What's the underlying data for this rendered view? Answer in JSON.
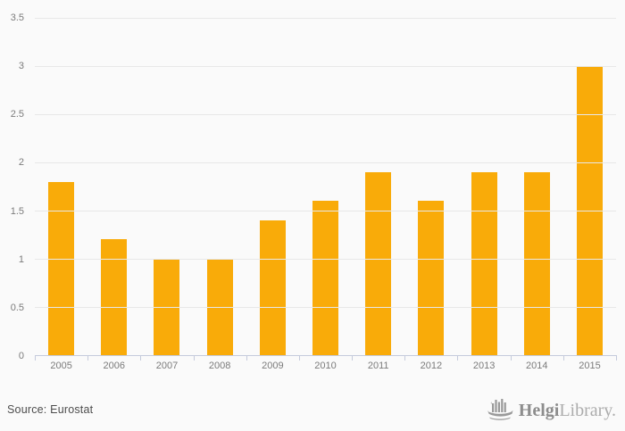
{
  "chart_data": {
    "type": "bar",
    "categories": [
      "2005",
      "2006",
      "2007",
      "2008",
      "2009",
      "2010",
      "2011",
      "2012",
      "2013",
      "2014",
      "2015"
    ],
    "values": [
      1.8,
      1.2,
      1.0,
      1.0,
      1.4,
      1.6,
      1.9,
      1.6,
      1.9,
      1.9,
      3.0
    ],
    "title": "",
    "xlabel": "",
    "ylabel": "",
    "ylim": [
      0,
      3.5
    ],
    "yticks": [
      {
        "value": 0,
        "label": "0"
      },
      {
        "value": 0.5,
        "label": "0.5"
      },
      {
        "value": 1,
        "label": "1"
      },
      {
        "value": 1.5,
        "label": "1.5"
      },
      {
        "value": 2,
        "label": "2"
      },
      {
        "value": 2.5,
        "label": "2.5"
      },
      {
        "value": 3,
        "label": "3"
      },
      {
        "value": 3.5,
        "label": "3.5"
      }
    ],
    "grid": true,
    "legend": false,
    "bar_color": "#F9AB09"
  },
  "colors": {
    "background": "#FAFAFA",
    "gridline": "#E8E8E8",
    "axis": "#C5CBDC",
    "tick_label": "#7B7B7B",
    "source_text": "#4D4D4D",
    "logo_gray": "#9A9A9A"
  },
  "footer": {
    "source_label": "Source: Eurostat",
    "logo_bold": "Helgi",
    "logo_light": "Library."
  }
}
